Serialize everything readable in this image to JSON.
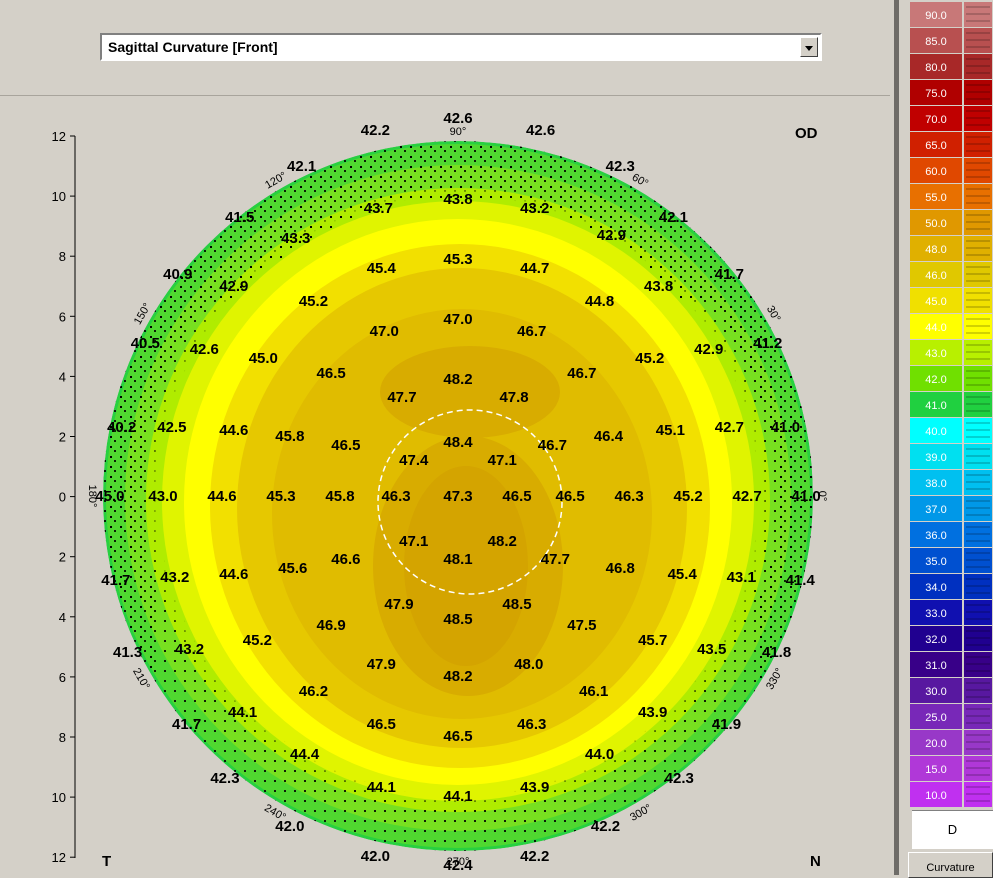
{
  "map_type_select": {
    "value": "Sagittal Curvature [Front]"
  },
  "corner_labels": {
    "eye": "OD",
    "temporal": "T",
    "nasal": "N"
  },
  "y_axis": {
    "ticks": [
      "12",
      "10",
      "8",
      "6",
      "4",
      "2",
      "0",
      "2",
      "4",
      "6",
      "8",
      "10",
      "12"
    ]
  },
  "angle_labels": [
    {
      "text": "90°",
      "angle": 90
    },
    {
      "text": "60°",
      "angle": 60
    },
    {
      "text": "30°",
      "angle": 30
    },
    {
      "text": "0°",
      "angle": 0
    },
    {
      "text": "330°",
      "angle": 330
    },
    {
      "text": "300°",
      "angle": 300
    },
    {
      "text": "270°",
      "angle": 270
    },
    {
      "text": "240°",
      "angle": 240
    },
    {
      "text": "210°",
      "angle": 210
    },
    {
      "text": "180°",
      "angle": 180
    },
    {
      "text": "150°",
      "angle": 150
    },
    {
      "text": "120°",
      "angle": 120
    }
  ],
  "map_values": [
    {
      "v": "42.6",
      "gx": 0,
      "gy": 12.6
    },
    {
      "v": "42.2",
      "gx": -2.8,
      "gy": 12.2
    },
    {
      "v": "42.6",
      "gx": 2.8,
      "gy": 12.2
    },
    {
      "v": "42.1",
      "gx": -5.3,
      "gy": 11
    },
    {
      "v": "42.3",
      "gx": 5.5,
      "gy": 11
    },
    {
      "v": "43.7",
      "gx": -2.7,
      "gy": 9.6
    },
    {
      "v": "43.8",
      "gx": 0,
      "gy": 9.9
    },
    {
      "v": "43.2",
      "gx": 2.6,
      "gy": 9.6
    },
    {
      "v": "41.5",
      "gx": -7.4,
      "gy": 9.3
    },
    {
      "v": "42.1",
      "gx": 7.3,
      "gy": 9.3
    },
    {
      "v": "43.3",
      "gx": -5.5,
      "gy": 8.6
    },
    {
      "v": "42.9",
      "gx": 5.2,
      "gy": 8.7
    },
    {
      "v": "45.4",
      "gx": -2.6,
      "gy": 7.6
    },
    {
      "v": "45.3",
      "gx": 0,
      "gy": 7.9
    },
    {
      "v": "44.7",
      "gx": 2.6,
      "gy": 7.6
    },
    {
      "v": "40.9",
      "gx": -9.5,
      "gy": 7.4
    },
    {
      "v": "42.9",
      "gx": -7.6,
      "gy": 7.0
    },
    {
      "v": "43.8",
      "gx": 6.8,
      "gy": 7.0
    },
    {
      "v": "41.7",
      "gx": 9.2,
      "gy": 7.4
    },
    {
      "v": "45.2",
      "gx": -4.9,
      "gy": 6.5
    },
    {
      "v": "44.8",
      "gx": 4.8,
      "gy": 6.5
    },
    {
      "v": "47.0",
      "gx": -2.5,
      "gy": 5.5
    },
    {
      "v": "47.0",
      "gx": 0,
      "gy": 5.9
    },
    {
      "v": "46.7",
      "gx": 2.5,
      "gy": 5.5
    },
    {
      "v": "40.5",
      "gx": -10.6,
      "gy": 5.1
    },
    {
      "v": "42.6",
      "gx": -8.6,
      "gy": 4.9
    },
    {
      "v": "45.0",
      "gx": -6.6,
      "gy": 4.6
    },
    {
      "v": "45.2",
      "gx": 6.5,
      "gy": 4.6
    },
    {
      "v": "42.9",
      "gx": 8.5,
      "gy": 4.9
    },
    {
      "v": "41.2",
      "gx": 10.5,
      "gy": 5.1
    },
    {
      "v": "46.5",
      "gx": -4.3,
      "gy": 4.1
    },
    {
      "v": "46.7",
      "gx": 4.2,
      "gy": 4.1
    },
    {
      "v": "48.2",
      "gx": 0,
      "gy": 3.9
    },
    {
      "v": "47.7",
      "gx": -1.9,
      "gy": 3.3
    },
    {
      "v": "47.8",
      "gx": 1.9,
      "gy": 3.3
    },
    {
      "v": "40.2",
      "gx": -11.4,
      "gy": 2.3
    },
    {
      "v": "42.5",
      "gx": -9.7,
      "gy": 2.3
    },
    {
      "v": "44.6",
      "gx": -7.6,
      "gy": 2.2
    },
    {
      "v": "45.8",
      "gx": -5.7,
      "gy": 2.0
    },
    {
      "v": "46.5",
      "gx": -3.8,
      "gy": 1.7
    },
    {
      "v": "48.4",
      "gx": 0,
      "gy": 1.8
    },
    {
      "v": "46.7",
      "gx": 3.2,
      "gy": 1.7
    },
    {
      "v": "46.4",
      "gx": 5.1,
      "gy": 2.0
    },
    {
      "v": "45.1",
      "gx": 7.2,
      "gy": 2.2
    },
    {
      "v": "42.7",
      "gx": 9.2,
      "gy": 2.3
    },
    {
      "v": "41.0",
      "gx": 11.1,
      "gy": 2.3
    },
    {
      "v": "47.4",
      "gx": -1.5,
      "gy": 1.2
    },
    {
      "v": "47.1",
      "gx": 1.5,
      "gy": 1.2
    },
    {
      "v": "45.0",
      "gx": -11.8,
      "gy": 0
    },
    {
      "v": "43.0",
      "gx": -10.0,
      "gy": 0
    },
    {
      "v": "44.6",
      "gx": -8.0,
      "gy": 0
    },
    {
      "v": "45.3",
      "gx": -6.0,
      "gy": 0
    },
    {
      "v": "45.8",
      "gx": -4.0,
      "gy": 0
    },
    {
      "v": "46.3",
      "gx": -2.1,
      "gy": 0
    },
    {
      "v": "47.3",
      "gx": 0,
      "gy": 0
    },
    {
      "v": "46.5",
      "gx": 2.0,
      "gy": 0
    },
    {
      "v": "46.5",
      "gx": 3.8,
      "gy": 0
    },
    {
      "v": "46.3",
      "gx": 5.8,
      "gy": 0
    },
    {
      "v": "45.2",
      "gx": 7.8,
      "gy": 0
    },
    {
      "v": "42.7",
      "gx": 9.8,
      "gy": 0
    },
    {
      "v": "41.0",
      "gx": 11.8,
      "gy": 0
    },
    {
      "v": "47.1",
      "gx": -1.5,
      "gy": -1.5
    },
    {
      "v": "48.2",
      "gx": 1.5,
      "gy": -1.5
    },
    {
      "v": "46.6",
      "gx": -3.8,
      "gy": -2.1
    },
    {
      "v": "48.1",
      "gx": 0,
      "gy": -2.1
    },
    {
      "v": "47.7",
      "gx": 3.3,
      "gy": -2.1
    },
    {
      "v": "41.7",
      "gx": -11.6,
      "gy": -2.8
    },
    {
      "v": "43.2",
      "gx": -9.6,
      "gy": -2.7
    },
    {
      "v": "44.6",
      "gx": -7.6,
      "gy": -2.6
    },
    {
      "v": "45.6",
      "gx": -5.6,
      "gy": -2.4
    },
    {
      "v": "46.8",
      "gx": 5.5,
      "gy": -2.4
    },
    {
      "v": "45.4",
      "gx": 7.6,
      "gy": -2.6
    },
    {
      "v": "43.1",
      "gx": 9.6,
      "gy": -2.7
    },
    {
      "v": "41.4",
      "gx": 11.6,
      "gy": -2.8
    },
    {
      "v": "47.9",
      "gx": -2.0,
      "gy": -3.6
    },
    {
      "v": "48.5",
      "gx": 2.0,
      "gy": -3.6
    },
    {
      "v": "48.5",
      "gx": 0,
      "gy": -4.1
    },
    {
      "v": "46.9",
      "gx": -4.3,
      "gy": -4.3
    },
    {
      "v": "47.5",
      "gx": 4.2,
      "gy": -4.3
    },
    {
      "v": "41.3",
      "gx": -11.2,
      "gy": -5.2
    },
    {
      "v": "43.2",
      "gx": -9.1,
      "gy": -5.1
    },
    {
      "v": "45.2",
      "gx": -6.8,
      "gy": -4.8
    },
    {
      "v": "45.7",
      "gx": 6.6,
      "gy": -4.8
    },
    {
      "v": "43.5",
      "gx": 8.6,
      "gy": -5.1
    },
    {
      "v": "41.8",
      "gx": 10.8,
      "gy": -5.2
    },
    {
      "v": "47.9",
      "gx": -2.6,
      "gy": -5.6
    },
    {
      "v": "48.0",
      "gx": 2.4,
      "gy": -5.6
    },
    {
      "v": "48.2",
      "gx": 0,
      "gy": -6.0
    },
    {
      "v": "46.2",
      "gx": -4.9,
      "gy": -6.5
    },
    {
      "v": "46.1",
      "gx": 4.6,
      "gy": -6.5
    },
    {
      "v": "44.1",
      "gx": -7.3,
      "gy": -7.2
    },
    {
      "v": "43.9",
      "gx": 6.6,
      "gy": -7.2
    },
    {
      "v": "41.7",
      "gx": -9.2,
      "gy": -7.6
    },
    {
      "v": "41.9",
      "gx": 9.1,
      "gy": -7.6
    },
    {
      "v": "46.5",
      "gx": -2.6,
      "gy": -7.6
    },
    {
      "v": "46.3",
      "gx": 2.5,
      "gy": -7.6
    },
    {
      "v": "46.5",
      "gx": 0,
      "gy": -8.0
    },
    {
      "v": "44.4",
      "gx": -5.2,
      "gy": -8.6
    },
    {
      "v": "44.0",
      "gx": 4.8,
      "gy": -8.6
    },
    {
      "v": "42.3",
      "gx": -7.9,
      "gy": -9.4
    },
    {
      "v": "42.3",
      "gx": 7.5,
      "gy": -9.4
    },
    {
      "v": "44.1",
      "gx": -2.6,
      "gy": -9.7
    },
    {
      "v": "43.9",
      "gx": 2.6,
      "gy": -9.7
    },
    {
      "v": "44.1",
      "gx": 0,
      "gy": -10.0
    },
    {
      "v": "42.0",
      "gx": -5.7,
      "gy": -11.0
    },
    {
      "v": "42.2",
      "gx": 5.0,
      "gy": -11.0
    },
    {
      "v": "42.0",
      "gx": -2.8,
      "gy": -12.0
    },
    {
      "v": "42.4",
      "gx": 0,
      "gy": -12.3
    },
    {
      "v": "42.2",
      "gx": 2.6,
      "gy": -12.0
    }
  ],
  "color_scale": [
    {
      "v": "90.0",
      "c": "#c87878"
    },
    {
      "v": "85.0",
      "c": "#b85050"
    },
    {
      "v": "80.0",
      "c": "#a82828"
    },
    {
      "v": "75.0",
      "c": "#b00000"
    },
    {
      "v": "70.0",
      "c": "#c00000"
    },
    {
      "v": "65.0",
      "c": "#d02000"
    },
    {
      "v": "60.0",
      "c": "#e04800"
    },
    {
      "v": "55.0",
      "c": "#e87000"
    },
    {
      "v": "50.0",
      "c": "#e09800"
    },
    {
      "v": "48.0",
      "c": "#e0b000"
    },
    {
      "v": "46.0",
      "c": "#e0c800"
    },
    {
      "v": "45.0",
      "c": "#f0e000"
    },
    {
      "v": "44.0",
      "c": "#ffff00"
    },
    {
      "v": "43.0",
      "c": "#b8f000"
    },
    {
      "v": "42.0",
      "c": "#70e000"
    },
    {
      "v": "41.0",
      "c": "#20d040"
    },
    {
      "v": "40.0",
      "c": "#00ffff"
    },
    {
      "v": "39.0",
      "c": "#00e0f0"
    },
    {
      "v": "38.0",
      "c": "#00c0f0"
    },
    {
      "v": "37.0",
      "c": "#0098e8"
    },
    {
      "v": "36.0",
      "c": "#0070e0"
    },
    {
      "v": "35.0",
      "c": "#0050d0"
    },
    {
      "v": "34.0",
      "c": "#0030c0"
    },
    {
      "v": "33.0",
      "c": "#1010b0"
    },
    {
      "v": "32.0",
      "c": "#200090"
    },
    {
      "v": "31.0",
      "c": "#380088"
    },
    {
      "v": "30.0",
      "c": "#5818a0"
    },
    {
      "v": "25.0",
      "c": "#7828b8"
    },
    {
      "v": "20.0",
      "c": "#9838c8"
    },
    {
      "v": "15.0",
      "c": "#b038d8"
    },
    {
      "v": "10.0",
      "c": "#c030f0"
    }
  ],
  "scale_unit": "D",
  "curvature_button": "Curvature"
}
